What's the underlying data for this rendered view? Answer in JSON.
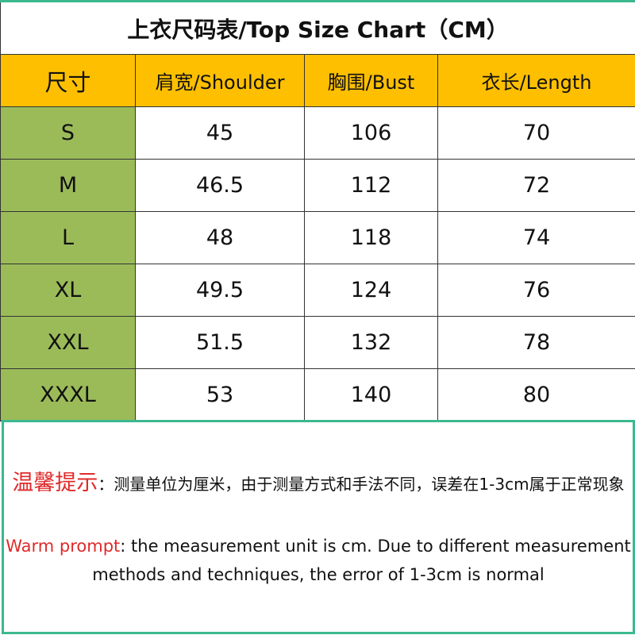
{
  "title": "上衣尺码表/Top Size Chart（CM）",
  "headers": [
    "尺寸",
    "肩宽/Shoulder",
    "胸围/Bust",
    "衣长/Length"
  ],
  "rows": [
    [
      "S",
      "45",
      "106",
      "70"
    ],
    [
      "M",
      "46.5",
      "112",
      "72"
    ],
    [
      "L",
      "48",
      "118",
      "74"
    ],
    [
      "XL",
      "49.5",
      "124",
      "76"
    ],
    [
      "XXL",
      "51.5",
      "132",
      "78"
    ],
    [
      "XXXL",
      "53",
      "140",
      "80"
    ]
  ],
  "note": {
    "cn_label": "温馨提示",
    "cn_text": "：测量单位为厘米，由于测量方式和手法不同，误差在1-3cm属于正常现象",
    "en_label": "Warm prompt",
    "en_text": ": the measurement unit is cm. Due to different measurement methods and techniques, the error of 1-3cm is normal"
  },
  "colors": {
    "header_bg": "#fdbf00",
    "size_bg": "#9bbb59",
    "border_accent": "#3cb890",
    "label_red": "#e02a2a"
  }
}
